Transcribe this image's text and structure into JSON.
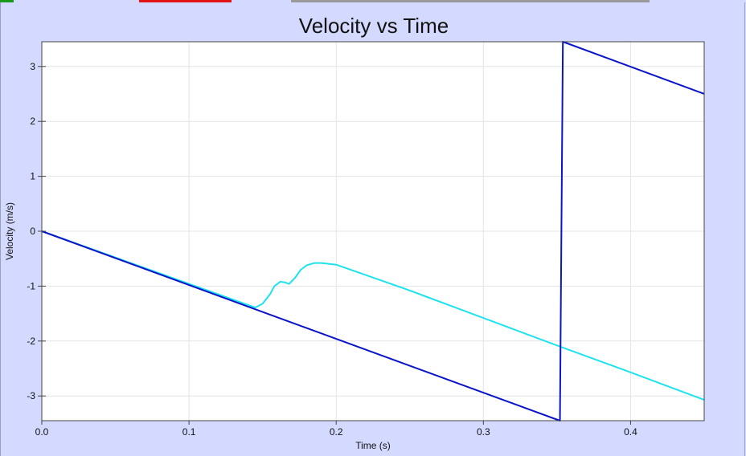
{
  "colors": {
    "panel_bg": "#d4daff",
    "plot_bg": "#ffffff",
    "grid": "#e4e4e4",
    "series_dark": "#0a14c8",
    "series_light": "#1ee3ee",
    "tab_green": "#1a9a1a",
    "tab_red": "#e21313",
    "tab_gray": "#9a9a9a"
  },
  "chart_data": {
    "type": "line",
    "title": "Velocity vs Time",
    "xlabel": "Time (s)",
    "ylabel": "Velocity (m/s)",
    "xlim": [
      0.0,
      0.45
    ],
    "ylim": [
      -3.45,
      3.45
    ],
    "xticks": [
      0.0,
      0.1,
      0.2,
      0.3,
      0.4
    ],
    "xtick_labels": [
      "0.0",
      "0.1",
      "0.2",
      "0.3",
      "0.4"
    ],
    "yticks": [
      3,
      2,
      1,
      0,
      -1,
      -2,
      -3
    ],
    "ytick_labels": [
      "3",
      "2",
      "1",
      "0",
      "-1",
      "-2",
      "-3"
    ],
    "grid": true,
    "legend": "none",
    "series": [
      {
        "color": "#1ee3ee",
        "x": [
          0.0,
          0.145,
          0.15,
          0.155,
          0.158,
          0.162,
          0.165,
          0.168,
          0.172,
          0.176,
          0.18,
          0.185,
          0.19,
          0.2,
          0.25,
          0.3,
          0.35,
          0.4,
          0.45
        ],
        "y": [
          0.0,
          -1.39,
          -1.32,
          -1.15,
          -1.0,
          -0.92,
          -0.93,
          -0.96,
          -0.85,
          -0.7,
          -0.62,
          -0.58,
          -0.58,
          -0.61,
          -1.08,
          -1.58,
          -2.08,
          -2.57,
          -3.07
        ]
      },
      {
        "color": "#0a14c8",
        "x": [
          0.0,
          0.352,
          0.352,
          0.354,
          0.45
        ],
        "y": [
          0.0,
          -3.45,
          -3.45,
          3.45,
          2.5
        ]
      }
    ]
  }
}
